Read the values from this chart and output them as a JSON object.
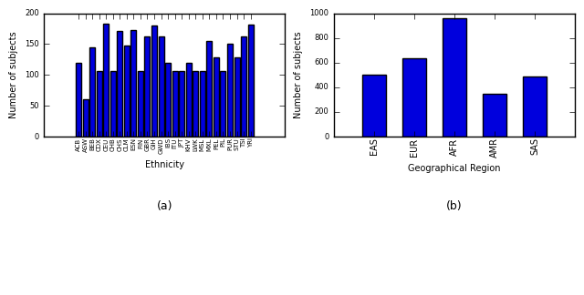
{
  "left_categories": [
    "ACB",
    "ASW",
    "BEB",
    "CDX",
    "CEU",
    "CHB",
    "CHS",
    "CLM",
    "ESN",
    "FIN",
    "GBR",
    "GIH",
    "GWD",
    "IBS",
    "ITU",
    "JPT",
    "KHV",
    "LWK",
    "MSL",
    "MXL",
    "PEL",
    "PIL",
    "PUR",
    "STU",
    "TSI",
    "YRI"
  ],
  "left_values": [
    120,
    61,
    144,
    107,
    183,
    107,
    171,
    147,
    172,
    107,
    162,
    180,
    162,
    120,
    107,
    107,
    120,
    107,
    107,
    155,
    128,
    107,
    150,
    128,
    163,
    182
  ],
  "left_ylabel": "Number of subjects",
  "left_xlabel": "Ethnicity",
  "left_ylim": [
    0,
    200
  ],
  "left_yticks": [
    0,
    50,
    100,
    150,
    200
  ],
  "left_caption": "(a)",
  "right_categories": [
    "EAS",
    "EUR",
    "AFR",
    "AMR",
    "SAS"
  ],
  "right_values": [
    504,
    633,
    961,
    347,
    489
  ],
  "right_ylabel": "Number of subjects",
  "right_xlabel": "Geographical Region",
  "right_ylim": [
    0,
    1000
  ],
  "right_yticks": [
    0,
    200,
    400,
    600,
    800,
    1000
  ],
  "right_caption": "(b)",
  "bar_color": "#0000dd",
  "bg_color": "#ffffff"
}
